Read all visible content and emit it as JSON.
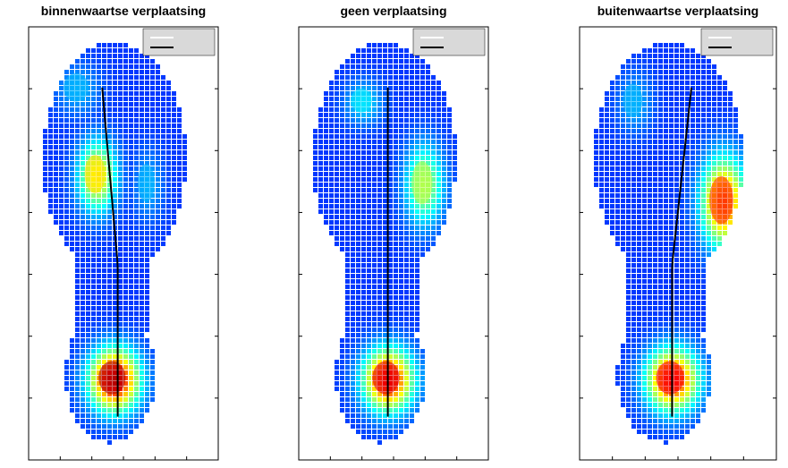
{
  "chart_data": [
    {
      "type": "heatmap",
      "title": "binnenwaartse verplaatsing",
      "legend": {
        "placement": "top-right",
        "entries": []
      },
      "pressure_blobs": [
        {
          "cx": 0.44,
          "cy": 0.81,
          "rx": 0.13,
          "ry": 0.07,
          "level": 0.95
        },
        {
          "cx": 0.35,
          "cy": 0.34,
          "rx": 0.1,
          "ry": 0.08,
          "level": 0.65
        },
        {
          "cx": 0.25,
          "cy": 0.14,
          "rx": 0.12,
          "ry": 0.06,
          "level": 0.3
        },
        {
          "cx": 0.62,
          "cy": 0.36,
          "rx": 0.08,
          "ry": 0.08,
          "level": 0.3
        }
      ]
    },
    {
      "type": "heatmap",
      "title": "geen verplaatsing",
      "legend": {
        "placement": "top-right",
        "entries": []
      },
      "pressure_blobs": [
        {
          "cx": 0.46,
          "cy": 0.81,
          "rx": 0.13,
          "ry": 0.07,
          "level": 0.9
        },
        {
          "cx": 0.65,
          "cy": 0.36,
          "rx": 0.1,
          "ry": 0.09,
          "level": 0.55
        },
        {
          "cx": 0.33,
          "cy": 0.17,
          "rx": 0.1,
          "ry": 0.05,
          "level": 0.35
        }
      ]
    },
    {
      "type": "heatmap",
      "title": "buitenwaartse verplaatsing",
      "legend": {
        "placement": "top-right",
        "entries": []
      },
      "pressure_blobs": [
        {
          "cx": 0.46,
          "cy": 0.81,
          "rx": 0.13,
          "ry": 0.07,
          "level": 0.88
        },
        {
          "cx": 0.72,
          "cy": 0.4,
          "rx": 0.11,
          "ry": 0.1,
          "level": 0.82
        },
        {
          "cx": 0.27,
          "cy": 0.17,
          "rx": 0.09,
          "ry": 0.07,
          "level": 0.3
        }
      ]
    }
  ],
  "colors": {
    "background": "#ffffff",
    "axes": "#000000",
    "legend_box": "#d9d9d9",
    "colormap": "jet"
  }
}
